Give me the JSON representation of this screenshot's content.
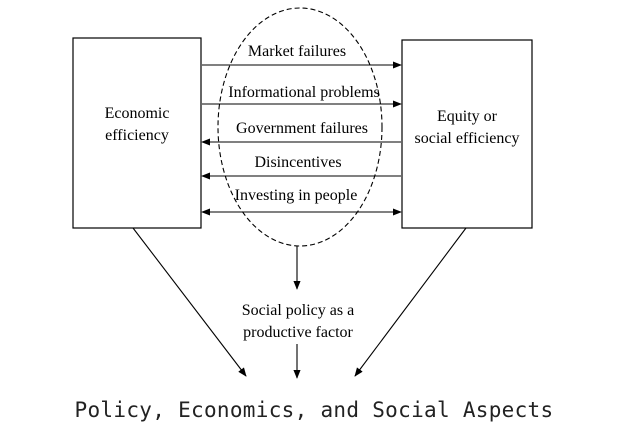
{
  "left_box": {
    "line1": "Economic",
    "line2": "efficiency"
  },
  "right_box": {
    "line1": "Equity or",
    "line2": "social efficiency"
  },
  "arrows": [
    {
      "label": "Market failures",
      "direction": "right"
    },
    {
      "label": "Informational problems",
      "direction": "right"
    },
    {
      "label": "Government failures",
      "direction": "left"
    },
    {
      "label": "Disincentives",
      "direction": "left"
    },
    {
      "label": "Investing in people",
      "direction": "both"
    }
  ],
  "outcome": {
    "line1": "Social policy as a",
    "line2": "productive factor"
  },
  "caption": "Policy, Economics, and Social Aspects"
}
